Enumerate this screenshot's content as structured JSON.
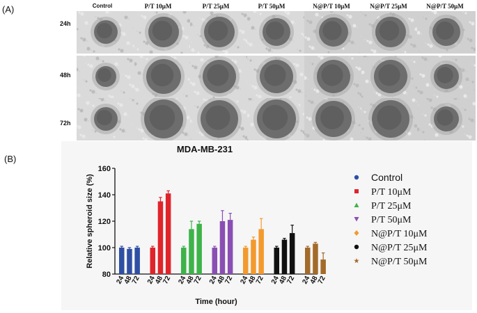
{
  "panel_a": {
    "label": "(A)",
    "columns": [
      "Control",
      "P/T 10μM",
      "P/T 25μM",
      "P/T 50μM",
      "N@P/T 10μM",
      "N@P/T 25μM",
      "N@P/T 50μM"
    ],
    "rows": [
      "24h",
      "48h",
      "72h"
    ]
  },
  "panel_b": {
    "label": "(B)"
  },
  "chart_data": {
    "type": "bar",
    "title": "MDA-MB-231",
    "xlabel": "Time (hour)",
    "ylabel": "Relative spheroid size (%)",
    "ylim": [
      80,
      160
    ],
    "yticks": [
      80,
      100,
      120,
      140,
      160
    ],
    "categories": [
      "24",
      "48",
      "72"
    ],
    "legend_position": "right",
    "grid": false,
    "series": [
      {
        "name": "Control",
        "marker": "circle",
        "color": "#2e4fa3",
        "values": [
          100,
          99,
          100
        ],
        "errors": [
          1,
          1,
          1
        ]
      },
      {
        "name": "P/T 10μM",
        "marker": "square",
        "color": "#e0242b",
        "values": [
          100,
          135,
          141
        ],
        "errors": [
          1,
          3,
          2
        ]
      },
      {
        "name": "P/T 25μM",
        "marker": "triangle-up",
        "color": "#3db34a",
        "values": [
          100,
          114,
          118
        ],
        "errors": [
          1,
          6,
          2
        ]
      },
      {
        "name": "P/T 50μM",
        "marker": "triangle-down",
        "color": "#8a4fb3",
        "values": [
          100,
          120,
          121
        ],
        "errors": [
          1,
          8,
          5
        ]
      },
      {
        "name": "N@P/T 10μM",
        "marker": "diamond",
        "color": "#f39a2e",
        "values": [
          100,
          106,
          114
        ],
        "errors": [
          1,
          2,
          8
        ]
      },
      {
        "name": "N@P/T 25μM",
        "marker": "circle",
        "color": "#111111",
        "values": [
          100,
          106,
          111
        ],
        "errors": [
          1,
          1,
          6
        ]
      },
      {
        "name": "N@P/T 50μM",
        "marker": "star",
        "color": "#a36a2a",
        "values": [
          100,
          103,
          91
        ],
        "errors": [
          1,
          1,
          5
        ]
      }
    ]
  }
}
